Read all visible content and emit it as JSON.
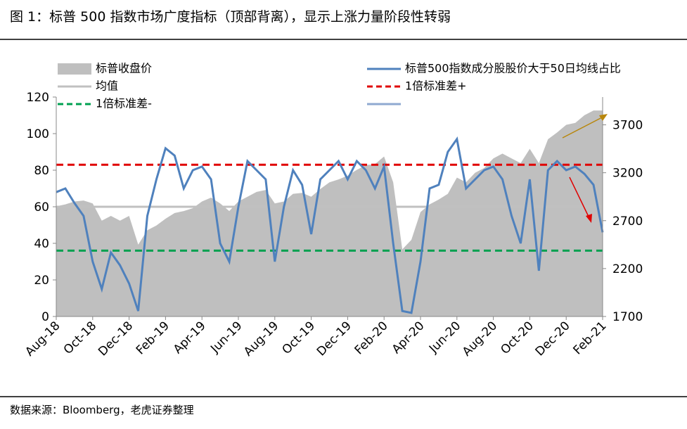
{
  "title": "图 1：标普 500 指数市场广度指标（顶部背离），显示上涨力量阶段性转弱",
  "source": "数据来源：Bloomberg，老虎证券整理",
  "chart_data": {
    "type": "line",
    "categories": [
      "Aug-18",
      null,
      null,
      null,
      "Oct-18",
      null,
      null,
      null,
      "Dec-18",
      null,
      null,
      null,
      "Feb-19",
      null,
      null,
      null,
      "Apr-19",
      null,
      null,
      null,
      "Jun-19",
      null,
      null,
      null,
      "Aug-19",
      null,
      null,
      null,
      "Oct-19",
      null,
      null,
      null,
      "Dec-19",
      null,
      null,
      null,
      "Feb-20",
      null,
      null,
      null,
      "Apr-20",
      null,
      null,
      null,
      "Jun-20",
      null,
      null,
      null,
      "Aug-20",
      null,
      null,
      null,
      "Oct-20",
      null,
      null,
      null,
      "Dec-20",
      null,
      null,
      null,
      "Feb-21"
    ],
    "series": [
      {
        "name": "标普收盘价",
        "type": "area",
        "axis": "y2",
        "color": "#bfbfbf",
        "values": [
          2850,
          2870,
          2900,
          2910,
          2880,
          2700,
          2750,
          2700,
          2750,
          2450,
          2600,
          2650,
          2720,
          2780,
          2800,
          2830,
          2900,
          2940,
          2880,
          2800,
          2900,
          2950,
          3000,
          3020,
          2880,
          2900,
          2980,
          2990,
          2950,
          3030,
          3100,
          3130,
          3170,
          3230,
          3280,
          3290,
          3370,
          3100,
          2400,
          2500,
          2790,
          2870,
          2920,
          2980,
          3150,
          3100,
          3200,
          3250,
          3350,
          3400,
          3350,
          3300,
          3450,
          3300,
          3550,
          3620,
          3700,
          3720,
          3800,
          3850,
          3850
        ]
      },
      {
        "name": "标普500指数成分股股价大于50日均线占比",
        "type": "line",
        "axis": "y",
        "color": "#4f81bd",
        "values": [
          68,
          70,
          62,
          55,
          30,
          15,
          35,
          28,
          18,
          3,
          55,
          75,
          92,
          88,
          70,
          80,
          82,
          75,
          40,
          30,
          60,
          85,
          80,
          75,
          30,
          60,
          80,
          72,
          45,
          75,
          80,
          85,
          75,
          85,
          80,
          70,
          82,
          40,
          3,
          2,
          30,
          70,
          72,
          90,
          97,
          70,
          75,
          80,
          82,
          75,
          55,
          40,
          75,
          25,
          80,
          85,
          80,
          82,
          78,
          72,
          46
        ]
      }
    ],
    "reference_lines": [
      {
        "name": "均值",
        "value": 60,
        "color": "#c0c0c0",
        "dash": false
      },
      {
        "name": "1倍标准差+",
        "value": 83,
        "color": "#e00000",
        "dash": true
      },
      {
        "name": "1倍标准差-",
        "value": 36,
        "color": "#00a050",
        "dash": true
      }
    ],
    "ylim": [
      0,
      120
    ],
    "yticks": [
      0,
      20,
      40,
      60,
      80,
      100,
      120
    ],
    "y2lim": [
      1700,
      3990
    ],
    "y2ticks": [
      1700,
      2200,
      2700,
      3200,
      3700
    ]
  }
}
